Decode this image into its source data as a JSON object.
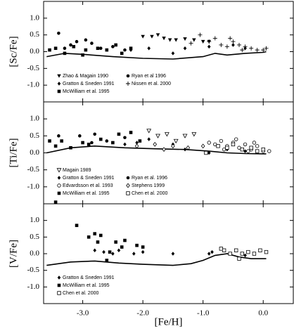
{
  "chart_data": [
    {
      "type": "scatter",
      "ylabel": "[Sc/Fe]",
      "xlim": [
        -3.65,
        0.5
      ],
      "xticks": [
        -3,
        -2,
        -1,
        0
      ],
      "ylim": [
        -1.5,
        1.5
      ],
      "yticks": [
        {
          "value": 1,
          "label": "1.0"
        },
        0.5,
        {
          "value": 0,
          "label": "0.0"
        },
        -0.5,
        {
          "value": -1,
          "label": "-1.0"
        }
      ],
      "series": [
        {
          "name": "Zhao & Magain 1990",
          "marker": "triangle-down",
          "color": "#000",
          "x": [
            -2.0,
            -1.85,
            -1.75,
            -1.65,
            -1.55,
            -1.45,
            -1.3,
            -1.15,
            -1.0,
            -0.9
          ],
          "values": [
            0.45,
            0.45,
            0.5,
            0.4,
            0.35,
            0.35,
            0.38,
            0.35,
            0.3,
            0.3
          ]
        },
        {
          "name": "Ryan et al 1996",
          "marker": "circle",
          "color": "#000",
          "x": [
            -3.4,
            -3.3,
            -3.2,
            -3.1,
            -2.95,
            -2.85,
            -2.7,
            -2.5,
            -2.3
          ],
          "values": [
            0.55,
            0.1,
            0.2,
            0.3,
            0.35,
            0.25,
            0.1,
            0.15,
            0.05
          ]
        },
        {
          "name": "Gratton & Sneden 1991",
          "marker": "diamond",
          "color": "#000",
          "x": [
            -2.2,
            -1.9,
            -1.5,
            -1.3,
            -0.9,
            -0.5,
            -0.3
          ],
          "values": [
            0.05,
            0.1,
            -0.05,
            0.1,
            0.15,
            0.2,
            0.1
          ]
        },
        {
          "name": "Nissen et al. 2000",
          "marker": "plus",
          "color": "#000",
          "x": [
            -1.2,
            -1.05,
            -0.9,
            -0.8,
            -0.7,
            -0.6,
            -0.55,
            -0.5,
            -0.4,
            -0.35,
            -0.3,
            -0.2,
            -0.1,
            0.0,
            0.05
          ],
          "values": [
            0.25,
            0.5,
            0.3,
            0.4,
            0.2,
            0.15,
            0.4,
            0.3,
            0.2,
            0.05,
            0.15,
            0.1,
            0.05,
            0.05,
            0.1
          ]
        },
        {
          "name": "McWilliam et al. 1995",
          "marker": "square",
          "color": "#000",
          "x": [
            -3.55,
            -3.45,
            -3.3,
            -3.15,
            -3.0,
            -2.95,
            -2.75,
            -2.6,
            -2.45,
            -2.35,
            -2.2
          ],
          "values": [
            0.05,
            0.1,
            -0.05,
            0.15,
            -0.1,
            0.05,
            0.1,
            0.05,
            0.2,
            -0.05,
            0.1
          ]
        }
      ],
      "model": {
        "color": "#000",
        "x": [
          -3.6,
          -3.3,
          -3.0,
          -2.5,
          -2.0,
          -1.5,
          -1.0,
          -0.8,
          -0.6,
          -0.3,
          0.0,
          0.05
        ],
        "values": [
          -0.15,
          -0.05,
          -0.08,
          -0.15,
          -0.2,
          -0.22,
          -0.15,
          -0.05,
          -0.1,
          -0.05,
          -0.02,
          0.0
        ]
      }
    },
    {
      "type": "scatter",
      "ylabel": "[Ti/Fe]",
      "xlim": [
        -3.65,
        0.5
      ],
      "xticks": [
        -3,
        -2,
        -1,
        0
      ],
      "ylim": [
        -1.5,
        1.5
      ],
      "yticks": [
        {
          "value": 1,
          "label": "1.0"
        },
        0.5,
        {
          "value": 0,
          "label": "0.0"
        },
        -0.5,
        {
          "value": -1,
          "label": "-1.0"
        }
      ],
      "series": [
        {
          "name": "Magain 1989",
          "marker": "triangle-down-open",
          "color": "#000",
          "x": [
            -1.9,
            -1.75,
            -1.6,
            -1.45,
            -1.3,
            -1.15
          ],
          "values": [
            0.65,
            0.5,
            0.55,
            0.35,
            0.5,
            0.55
          ]
        },
        {
          "name": "Gratton & Sneden 1991",
          "marker": "diamond",
          "color": "#000",
          "x": [
            -2.3,
            -2.1,
            -1.9,
            -1.5,
            -1.3,
            -0.9,
            -0.6,
            -0.3
          ],
          "values": [
            0.25,
            0.3,
            0.4,
            0.25,
            0.1,
            0.0,
            0.1,
            0.05
          ]
        },
        {
          "name": "Ryan et al. 1996",
          "marker": "circle",
          "color": "#000",
          "x": [
            -3.4,
            -3.05,
            -2.85,
            -2.8,
            -2.6,
            -2.3
          ],
          "values": [
            0.5,
            0.5,
            0.3,
            0.55,
            0.35,
            0.45
          ]
        },
        {
          "name": "Edvardsson et al. 1993",
          "marker": "circle-open",
          "color": "#000",
          "x": [
            -0.9,
            -0.8,
            -0.7,
            -0.65,
            -0.6,
            -0.5,
            -0.45,
            -0.4,
            -0.3,
            -0.25,
            -0.2,
            -0.15,
            -0.1,
            0.0,
            0.1
          ],
          "values": [
            0.3,
            0.25,
            0.35,
            0.1,
            0.2,
            0.3,
            0.4,
            0.15,
            0.25,
            0.05,
            0.1,
            0.3,
            0.2,
            0.05,
            0.05
          ]
        },
        {
          "name": "Stephens 1999",
          "marker": "diamond-open",
          "color": "#000",
          "x": [
            -2.1,
            -1.8,
            -1.65,
            -1.5,
            -1.25,
            -1.0
          ],
          "values": [
            0.2,
            0.25,
            0.1,
            0.2,
            0.15,
            0.2
          ]
        },
        {
          "name": "McWilliam et al. 1995",
          "marker": "square",
          "color": "#000",
          "x": [
            -3.55,
            -3.45,
            -3.35,
            -3.2,
            -3.0,
            -2.9,
            -2.7,
            -2.5,
            -2.4,
            -2.2,
            -2.05
          ],
          "values": [
            0.35,
            0.2,
            0.35,
            0.15,
            0.3,
            0.25,
            0.4,
            0.3,
            0.55,
            0.6,
            0.35
          ]
        },
        {
          "name": "Chen et al. 2000",
          "marker": "square-open",
          "color": "#000",
          "x": [
            -0.95,
            -0.75,
            -0.6,
            -0.5,
            -0.35,
            -0.2,
            -0.1,
            0.0
          ],
          "values": [
            0.0,
            0.2,
            0.15,
            0.25,
            0.1,
            0.15,
            0.05,
            0.1
          ]
        }
      ],
      "model": {
        "color": "#000",
        "x": [
          -3.6,
          -3.2,
          -2.8,
          -2.3,
          -1.8,
          -1.3,
          -0.9,
          -0.6,
          -0.3,
          0.0,
          0.05
        ],
        "values": [
          0.0,
          0.15,
          0.2,
          0.15,
          0.12,
          0.1,
          0.05,
          0.0,
          -0.02,
          -0.03,
          -0.03
        ]
      }
    },
    {
      "type": "scatter",
      "ylabel": "[V/Fe]",
      "xlabel": "[Fe/H]",
      "xlim": [
        -3.65,
        0.5
      ],
      "xticks": [
        {
          "value": -3,
          "label": "-3.0"
        },
        {
          "value": -2,
          "label": "-2.0"
        },
        {
          "value": -1,
          "label": "-1.0"
        },
        {
          "value": 0,
          "label": "0.0"
        }
      ],
      "ylim": [
        -1.5,
        1.5
      ],
      "yticks": [
        {
          "value": 1,
          "label": "1.0"
        },
        0.5,
        {
          "value": 0,
          "label": "0.0"
        },
        -0.5,
        {
          "value": -1,
          "label": "-1.0"
        }
      ],
      "series": [
        {
          "name": "Gratton & Sneden 1991",
          "marker": "diamond",
          "color": "#000",
          "x": [
            -2.8,
            -2.65,
            -2.5,
            -2.4,
            -2.15,
            -2.0,
            -1.5,
            -0.9,
            -0.85,
            -0.3
          ],
          "values": [
            0.1,
            0.05,
            0.0,
            0.1,
            0.0,
            0.05,
            0.0,
            0.0,
            0.05,
            -0.05
          ]
        },
        {
          "name": "McWilliam et al. 1995",
          "marker": "square",
          "color": "#000",
          "x": [
            -3.45,
            -3.1,
            -2.9,
            -2.8,
            -2.75,
            -2.7,
            -2.6,
            -2.55,
            -2.45,
            -2.35,
            -2.3,
            -2.1,
            -2.0
          ],
          "values": [
            1.55,
            0.85,
            0.5,
            0.6,
            0.35,
            0.55,
            -0.2,
            0.05,
            0.35,
            0.2,
            0.4,
            0.25,
            0.2
          ]
        },
        {
          "name": "Chen et al. 2000",
          "marker": "square-open",
          "color": "#000",
          "x": [
            -0.7,
            -0.65,
            -0.55,
            -0.45,
            -0.4,
            -0.35,
            -0.25,
            -0.15,
            -0.05,
            0.05
          ],
          "values": [
            0.15,
            0.1,
            0.0,
            0.1,
            -0.15,
            0.0,
            0.05,
            0.0,
            0.1,
            0.05
          ]
        }
      ],
      "model": {
        "color": "#000",
        "x": [
          -3.6,
          -3.2,
          -2.8,
          -2.4,
          -2.0,
          -1.5,
          -1.2,
          -1.0,
          -0.8,
          -0.6,
          -0.4,
          -0.2,
          0.0,
          0.05
        ],
        "values": [
          -0.35,
          -0.25,
          -0.22,
          -0.28,
          -0.32,
          -0.35,
          -0.3,
          -0.2,
          -0.05,
          0.0,
          -0.1,
          -0.15,
          -0.15,
          -0.15
        ]
      }
    }
  ]
}
